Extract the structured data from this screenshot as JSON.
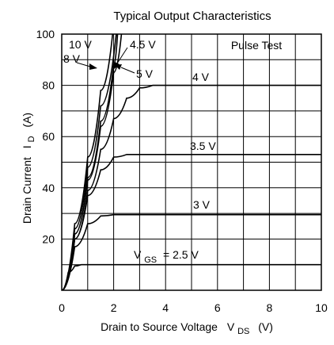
{
  "chart_data": {
    "type": "line",
    "title": "Typical Output Characteristics",
    "xlabel": {
      "main": "Drain to Source Voltage",
      "symbol": "V",
      "subscript": "DS",
      "unit": "(V)"
    },
    "ylabel": {
      "main": "Drain Current",
      "symbol": "I",
      "subscript": "D",
      "unit": "(A)"
    },
    "xlim": [
      0,
      10
    ],
    "ylim": [
      0,
      100
    ],
    "xticks": [
      0,
      2,
      4,
      6,
      8,
      10
    ],
    "yticks": [
      20,
      40,
      60,
      80,
      100
    ],
    "grid": true,
    "annotation": "Pulse Test",
    "series": [
      {
        "name": "10 V",
        "x": [
          0,
          0.5,
          1.0,
          1.5,
          2.0
        ],
        "y": [
          0,
          26,
          52,
          78,
          104
        ]
      },
      {
        "name": "8 V",
        "x": [
          0,
          0.5,
          1.0,
          1.5,
          2.1
        ],
        "y": [
          0,
          24,
          48,
          72,
          100
        ]
      },
      {
        "name": "4.5 V",
        "x": [
          0,
          0.5,
          1.0,
          1.5,
          2.0,
          2.15
        ],
        "y": [
          0,
          22,
          44,
          66,
          88,
          100
        ]
      },
      {
        "name": "5 V",
        "x": [
          0,
          0.5,
          1.0,
          1.5,
          2.0,
          2.3
        ],
        "y": [
          0,
          22,
          43,
          64,
          85,
          100
        ]
      },
      {
        "name": "4 V",
        "x": [
          0,
          0.5,
          1.0,
          1.5,
          2.0,
          2.5,
          3.0,
          3.5,
          10
        ],
        "y": [
          0,
          20,
          39,
          55,
          67,
          75,
          79,
          80,
          80
        ]
      },
      {
        "name": "3.5 V",
        "x": [
          0,
          0.5,
          1.0,
          1.5,
          2.0,
          2.5,
          10
        ],
        "y": [
          0,
          20,
          37,
          47,
          52,
          53,
          53
        ]
      },
      {
        "name": "3 V",
        "x": [
          0,
          0.5,
          1.0,
          1.5,
          2.0,
          10
        ],
        "y": [
          0,
          17,
          26,
          29,
          29.5,
          29.5
        ]
      },
      {
        "name": "2.5 V",
        "x": [
          0,
          0.25,
          0.5,
          0.75,
          1.0,
          10
        ],
        "y": [
          0,
          7,
          9.5,
          10,
          10,
          10
        ]
      }
    ],
    "labels": {
      "vgs_prefix": "V",
      "vgs_subscript": "GS",
      "vgs_value": "= 2.5  V"
    }
  }
}
